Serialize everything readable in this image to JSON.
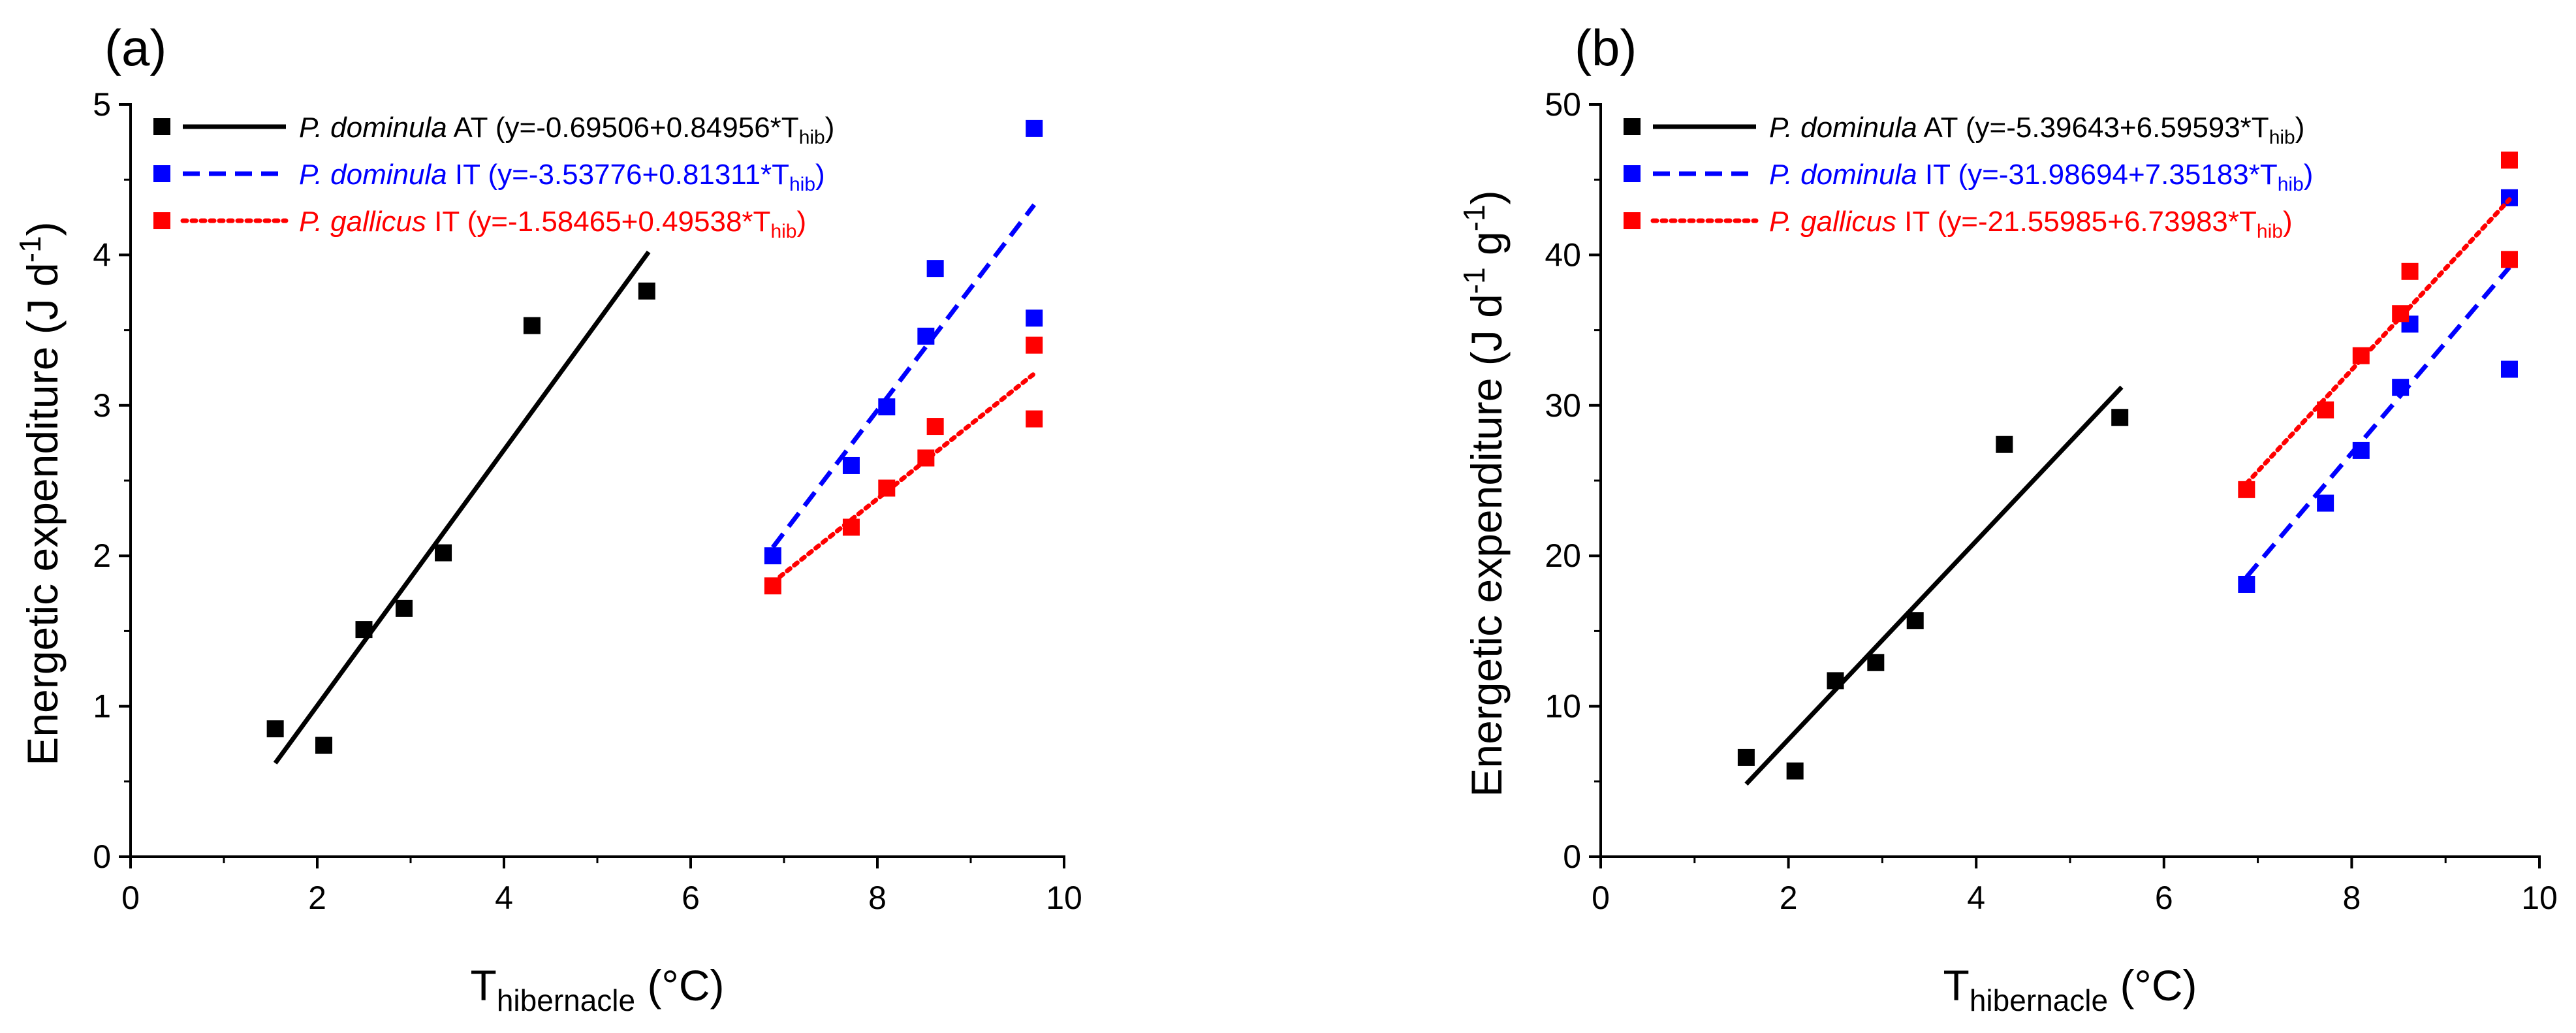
{
  "colors": {
    "black": "#000000",
    "blue": "#0000ff",
    "red": "#ff0000"
  },
  "chart_data": [
    {
      "type": "scatter",
      "panel_label": "(a)",
      "xlabel": {
        "main": "T",
        "sub": "hibernacle",
        "tail": " (°C)"
      },
      "ylabel": {
        "pre": "Energetic expenditure (J d",
        "sup1": "-1",
        "mid": "",
        "sup2": "",
        "post": ")"
      },
      "xlim": [
        0,
        10
      ],
      "ylim": [
        0,
        5
      ],
      "xticks": [
        0,
        2,
        4,
        6,
        8,
        10
      ],
      "yticks": [
        0,
        1,
        2,
        3,
        4,
        5
      ],
      "legend_position": "top-left",
      "series": [
        {
          "name": "P. dominula AT",
          "color_key": "black",
          "line_style": "solid",
          "legend": {
            "species": "P. dominula",
            "group": " AT",
            "eq_pre": " (y=-0.69506+0.84956*T",
            "eq_sub": "hib",
            "eq_post": ")"
          },
          "fit": {
            "intercept": -0.69506,
            "slope": 0.84956,
            "x_range": [
              1.55,
              5.55
            ]
          },
          "points": [
            [
              1.55,
              0.85
            ],
            [
              2.07,
              0.74
            ],
            [
              2.5,
              1.51
            ],
            [
              2.93,
              1.65
            ],
            [
              3.35,
              2.02
            ],
            [
              4.3,
              3.53
            ],
            [
              5.53,
              3.76
            ]
          ]
        },
        {
          "name": "P. dominula IT",
          "color_key": "blue",
          "line_style": "dashed",
          "legend": {
            "species": "P. dominula",
            "group": " IT",
            "eq_pre": " (y=-3.53776+0.81311*T",
            "eq_sub": "hib",
            "eq_post": ")"
          },
          "fit": {
            "intercept": -3.53776,
            "slope": 0.81311,
            "x_range": [
              6.88,
              9.68
            ]
          },
          "points": [
            [
              6.88,
              2.0
            ],
            [
              7.72,
              2.6
            ],
            [
              8.1,
              2.99
            ],
            [
              8.52,
              3.46
            ],
            [
              8.62,
              3.91
            ],
            [
              9.68,
              4.84
            ],
            [
              9.68,
              3.58
            ]
          ]
        },
        {
          "name": "P. gallicus IT",
          "color_key": "red",
          "line_style": "dotted",
          "legend": {
            "species": "P. gallicus",
            "group": " IT",
            "eq_pre": "  (y=-1.58465+0.49538*T",
            "eq_sub": "hib",
            "eq_post": ")"
          },
          "fit": {
            "intercept": -1.58465,
            "slope": 0.49538,
            "x_range": [
              6.88,
              9.68
            ]
          },
          "points": [
            [
              6.88,
              1.8
            ],
            [
              7.72,
              2.19
            ],
            [
              8.1,
              2.45
            ],
            [
              8.52,
              2.65
            ],
            [
              8.62,
              2.86
            ],
            [
              9.68,
              3.4
            ],
            [
              9.68,
              2.91
            ]
          ]
        }
      ]
    },
    {
      "type": "scatter",
      "panel_label": "(b)",
      "xlabel": {
        "main": "T",
        "sub": "hibernacle",
        "tail": " (°C)"
      },
      "ylabel": {
        "pre": "Energetic expenditure (J d",
        "sup1": "-1",
        "mid": " g",
        "sup2": "-1",
        "post": ")"
      },
      "xlim": [
        0,
        10
      ],
      "ylim": [
        0,
        50
      ],
      "xticks": [
        0,
        2,
        4,
        6,
        8,
        10
      ],
      "yticks": [
        0,
        10,
        20,
        30,
        40,
        50
      ],
      "legend_position": "top-left",
      "series": [
        {
          "name": "P. dominula AT",
          "color_key": "black",
          "line_style": "solid",
          "legend": {
            "species": "P. dominula",
            "group": " AT",
            "eq_pre": " (y=-5.39643+6.59593*T",
            "eq_sub": "hib",
            "eq_post": ")"
          },
          "fit": {
            "intercept": -5.39643,
            "slope": 6.59593,
            "x_range": [
              1.55,
              5.55
            ]
          },
          "points": [
            [
              1.55,
              6.6
            ],
            [
              2.07,
              5.7
            ],
            [
              2.5,
              11.7
            ],
            [
              2.93,
              12.9
            ],
            [
              3.35,
              15.7
            ],
            [
              4.3,
              27.4
            ],
            [
              5.53,
              29.2
            ]
          ]
        },
        {
          "name": "P. dominula IT",
          "color_key": "blue",
          "line_style": "dashed",
          "legend": {
            "species": "P. dominula",
            "group": " IT",
            "eq_pre": " (y=-31.98694+7.35183*T",
            "eq_sub": "hib",
            "eq_post": ")"
          },
          "fit": {
            "intercept": -31.98694,
            "slope": 7.35183,
            "x_range": [
              6.88,
              9.68
            ]
          },
          "points": [
            [
              6.88,
              18.1
            ],
            [
              7.72,
              23.5
            ],
            [
              8.1,
              27.0
            ],
            [
              8.52,
              31.2
            ],
            [
              8.62,
              35.4
            ],
            [
              9.68,
              43.8
            ],
            [
              9.68,
              32.4
            ]
          ]
        },
        {
          "name": "P. gallicus IT",
          "color_key": "red",
          "line_style": "dotted",
          "legend": {
            "species": "P. gallicus",
            "group": " IT",
            "eq_pre": " (y=-21.55985+6.73983*T",
            "eq_sub": "hib",
            "eq_post": ")"
          },
          "fit": {
            "intercept": -21.55985,
            "slope": 6.73983,
            "x_range": [
              6.88,
              9.68
            ]
          },
          "points": [
            [
              6.88,
              24.4
            ],
            [
              7.72,
              29.7
            ],
            [
              8.1,
              33.3
            ],
            [
              8.52,
              36.1
            ],
            [
              8.62,
              38.9
            ],
            [
              9.68,
              46.3
            ],
            [
              9.68,
              39.7
            ]
          ]
        }
      ]
    }
  ]
}
